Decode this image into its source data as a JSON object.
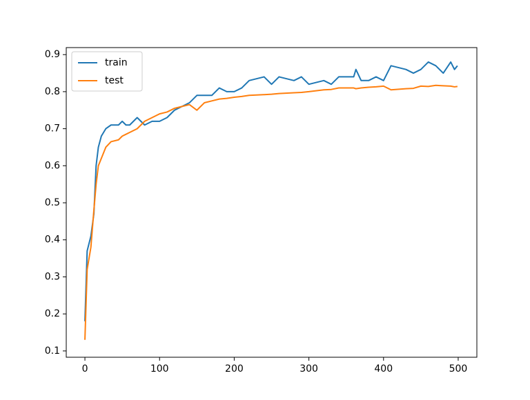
{
  "chart_data": {
    "type": "line",
    "x": [
      0,
      3,
      8,
      12,
      15,
      18,
      22,
      28,
      35,
      45,
      50,
      55,
      60,
      70,
      80,
      90,
      100,
      110,
      120,
      130,
      140,
      150,
      160,
      170,
      180,
      190,
      200,
      210,
      220,
      240,
      250,
      260,
      280,
      290,
      300,
      320,
      330,
      340,
      360,
      363,
      370,
      380,
      390,
      400,
      410,
      430,
      440,
      450,
      460,
      470,
      480,
      490,
      495,
      499
    ],
    "series": [
      {
        "name": "train",
        "color": "#1f77b4",
        "values": [
          0.18,
          0.37,
          0.41,
          0.47,
          0.6,
          0.65,
          0.68,
          0.7,
          0.71,
          0.71,
          0.72,
          0.71,
          0.71,
          0.73,
          0.71,
          0.72,
          0.72,
          0.73,
          0.75,
          0.76,
          0.77,
          0.79,
          0.79,
          0.79,
          0.81,
          0.8,
          0.8,
          0.81,
          0.83,
          0.84,
          0.82,
          0.84,
          0.83,
          0.84,
          0.82,
          0.83,
          0.82,
          0.84,
          0.84,
          0.86,
          0.83,
          0.83,
          0.84,
          0.83,
          0.87,
          0.86,
          0.85,
          0.86,
          0.88,
          0.87,
          0.85,
          0.88,
          0.86,
          0.87
        ]
      },
      {
        "name": "test",
        "color": "#ff7f0e",
        "values": [
          0.13,
          0.32,
          0.38,
          0.48,
          0.55,
          0.6,
          0.62,
          0.65,
          0.665,
          0.67,
          0.68,
          0.685,
          0.69,
          0.7,
          0.72,
          0.73,
          0.74,
          0.745,
          0.755,
          0.76,
          0.765,
          0.75,
          0.77,
          0.775,
          0.78,
          0.782,
          0.785,
          0.787,
          0.79,
          0.792,
          0.793,
          0.795,
          0.797,
          0.798,
          0.8,
          0.805,
          0.806,
          0.81,
          0.81,
          0.808,
          0.81,
          0.812,
          0.813,
          0.815,
          0.805,
          0.808,
          0.809,
          0.815,
          0.814,
          0.817,
          0.816,
          0.815,
          0.813,
          0.814
        ]
      }
    ],
    "xlim": [
      -25,
      525
    ],
    "xticks": [
      0,
      100,
      200,
      300,
      400,
      500
    ],
    "ylim": [
      0.083,
      0.919
    ],
    "yticks": [
      0.1,
      0.2,
      0.3,
      0.4,
      0.5,
      0.6,
      0.7,
      0.8,
      0.9
    ],
    "legend": "upper left",
    "grid": false
  }
}
